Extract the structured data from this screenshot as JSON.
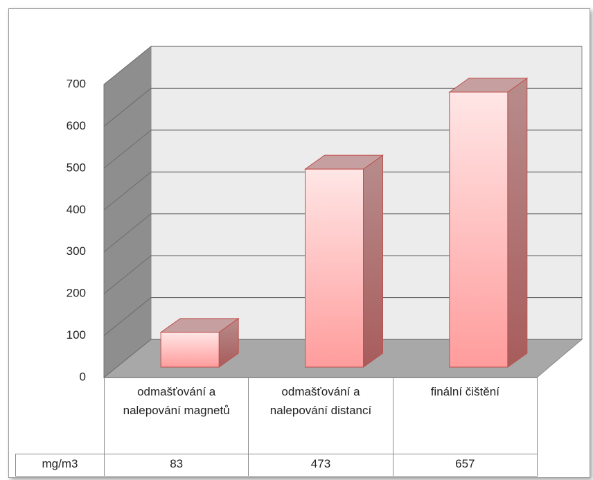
{
  "chart_data": {
    "type": "bar3d",
    "categories": [
      "odmašťování a nalepování magnetů",
      "odmašťování a nalepování distancí",
      "finální čištění"
    ],
    "series": [
      {
        "name": "mg/m3",
        "color": "#c0504d",
        "values": [
          83,
          473,
          657
        ]
      }
    ],
    "ylim": [
      0,
      700
    ],
    "yticks": [
      0,
      100,
      200,
      300,
      400,
      500,
      600,
      700
    ],
    "grid": true
  }
}
